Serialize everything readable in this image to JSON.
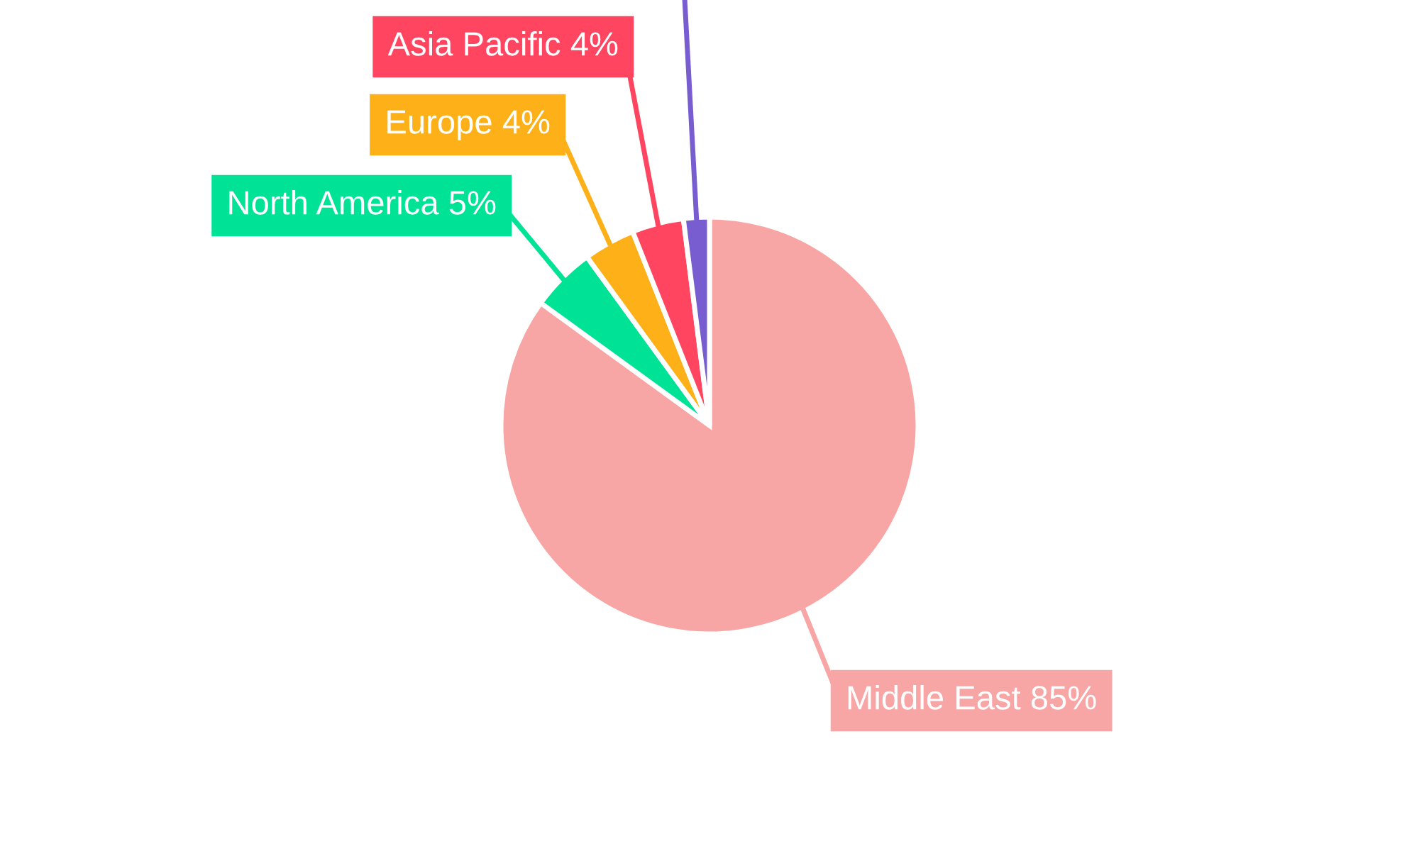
{
  "chart_data": {
    "type": "pie",
    "categories": [
      "Middle East",
      "North America",
      "Europe",
      "Asia Pacific",
      null
    ],
    "values": [
      85,
      5,
      4,
      4,
      2
    ],
    "value_labels": [
      "85%",
      "5%",
      "4%",
      "4%",
      null
    ],
    "colors": [
      "#f8a5a5",
      "#00e396",
      "#feb019",
      "#ff4560",
      "#775dd0"
    ],
    "legend": false
  }
}
